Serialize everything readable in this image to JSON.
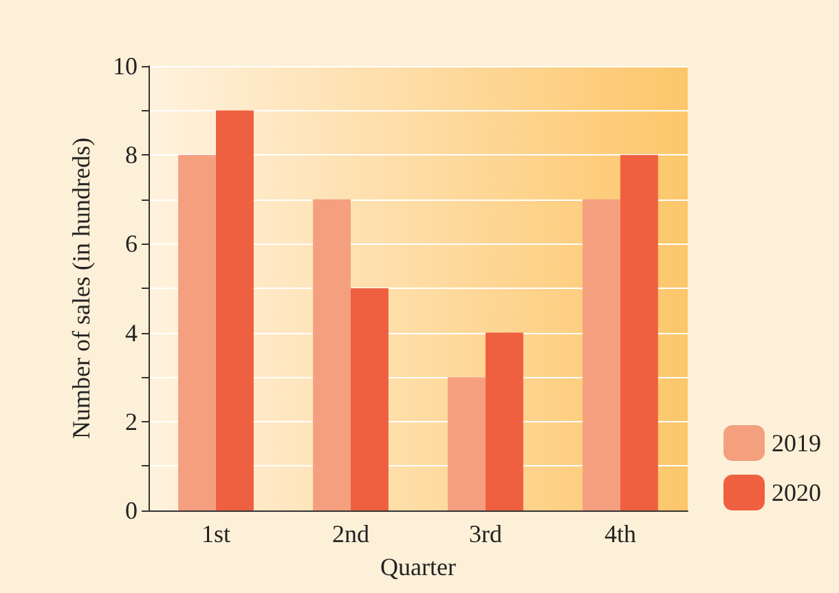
{
  "chart_data": {
    "type": "bar",
    "xlabel": "Quarter",
    "ylabel": "Number of sales (in hundreds)",
    "categories": [
      "1st",
      "2nd",
      "3rd",
      "4th"
    ],
    "series": [
      {
        "name": "2019",
        "color": "#f4a07f",
        "values": [
          8,
          7,
          3,
          7
        ]
      },
      {
        "name": "2020",
        "color": "#ef6040",
        "values": [
          9,
          5,
          4,
          8
        ]
      }
    ],
    "ylim": [
      0,
      10
    ],
    "yticks": [
      0,
      {
        "value": 1,
        "label": null
      },
      2,
      {
        "value": 3,
        "label": null
      },
      4,
      {
        "value": 5,
        "label": null
      },
      6,
      {
        "value": 7,
        "label": null
      },
      8,
      {
        "value": 9,
        "label": null
      },
      10
    ],
    "grid": "y",
    "legend": "bottom right"
  }
}
